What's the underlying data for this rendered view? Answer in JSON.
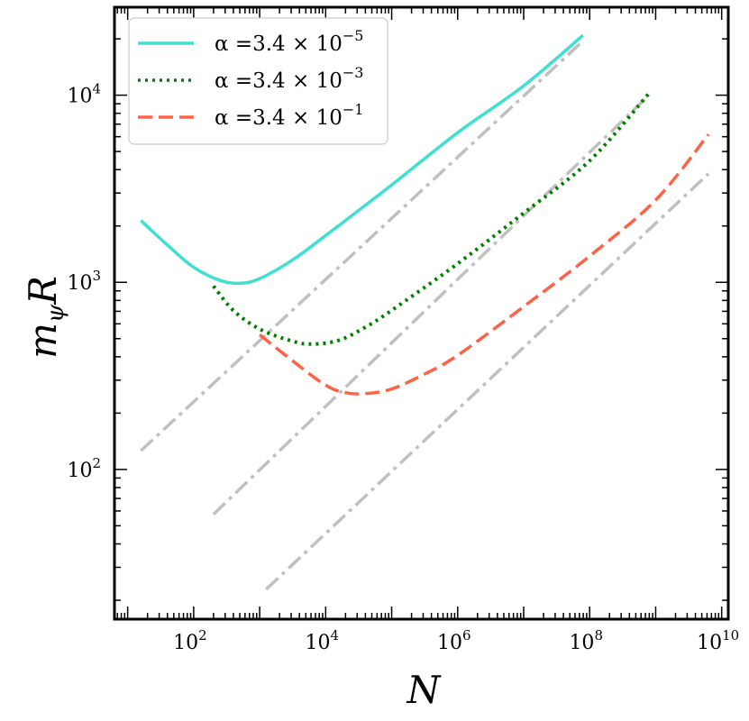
{
  "chart_data": {
    "type": "line",
    "title": "",
    "xlabel": "N",
    "ylabel_main": "m",
    "ylabel_sub": "ψ",
    "ylabel_tail": "R",
    "xscale": "log",
    "yscale": "log",
    "xlim_log10": [
      0.8,
      10.1
    ],
    "ylim_log10": [
      1.2,
      4.47
    ],
    "x_ticks": [
      {
        "base": "10",
        "exp": "2",
        "log10": 2
      },
      {
        "base": "10",
        "exp": "4",
        "log10": 4
      },
      {
        "base": "10",
        "exp": "6",
        "log10": 6
      },
      {
        "base": "10",
        "exp": "8",
        "log10": 8
      },
      {
        "base": "10",
        "exp": "10",
        "log10": 10
      }
    ],
    "y_ticks": [
      {
        "base": "10",
        "exp": "2",
        "log10": 2
      },
      {
        "base": "10",
        "exp": "3",
        "log10": 3
      },
      {
        "base": "10",
        "exp": "4",
        "log10": 4
      }
    ],
    "legend_position": "top-left",
    "series": [
      {
        "name": "α =3.4 × 10^-5",
        "legend_prefix": "α =3.4 × 10",
        "legend_exp": "−5",
        "color": "#40E0D0",
        "style": "solid",
        "points_log10": [
          [
            1.2,
            3.33
          ],
          [
            1.6,
            3.2
          ],
          [
            2.0,
            3.08
          ],
          [
            2.4,
            3.01
          ],
          [
            2.7,
            2.995
          ],
          [
            3.0,
            3.02
          ],
          [
            3.5,
            3.12
          ],
          [
            4.0,
            3.25
          ],
          [
            5.0,
            3.52
          ],
          [
            6.0,
            3.8
          ],
          [
            7.0,
            4.05
          ],
          [
            7.9,
            4.32
          ]
        ]
      },
      {
        "name": "α =3.4 × 10^-3",
        "legend_prefix": "α =3.4 × 10",
        "legend_exp": "−3",
        "color": "#008000",
        "style": "dotted",
        "points_log10": [
          [
            2.3,
            2.98
          ],
          [
            2.6,
            2.85
          ],
          [
            3.0,
            2.75
          ],
          [
            3.5,
            2.685
          ],
          [
            3.8,
            2.67
          ],
          [
            4.2,
            2.69
          ],
          [
            4.6,
            2.76
          ],
          [
            5.0,
            2.85
          ],
          [
            6.0,
            3.1
          ],
          [
            7.0,
            3.37
          ],
          [
            8.0,
            3.65
          ],
          [
            8.9,
            4.01
          ]
        ]
      },
      {
        "name": "α =3.4 × 10^-1",
        "legend_prefix": "α =3.4 × 10",
        "legend_exp": "−1",
        "color": "#FF6347",
        "style": "dashed",
        "points_log10": [
          [
            3.0,
            2.72
          ],
          [
            3.5,
            2.58
          ],
          [
            4.0,
            2.45
          ],
          [
            4.3,
            2.41
          ],
          [
            4.6,
            2.405
          ],
          [
            5.0,
            2.43
          ],
          [
            5.5,
            2.51
          ],
          [
            6.0,
            2.61
          ],
          [
            7.0,
            2.87
          ],
          [
            8.0,
            3.14
          ],
          [
            9.0,
            3.44
          ],
          [
            9.8,
            3.79
          ]
        ]
      }
    ],
    "reference_lines": [
      {
        "color": "#C0C0C0",
        "style": "dashdot",
        "points_log10": [
          [
            1.2,
            2.1
          ],
          [
            7.9,
            4.29
          ]
        ]
      },
      {
        "color": "#C0C0C0",
        "style": "dashdot",
        "points_log10": [
          [
            2.3,
            1.76
          ],
          [
            8.9,
            4.0
          ]
        ]
      },
      {
        "color": "#C0C0C0",
        "style": "dashdot",
        "points_log10": [
          [
            3.1,
            1.36
          ],
          [
            9.8,
            3.58
          ]
        ]
      }
    ]
  }
}
